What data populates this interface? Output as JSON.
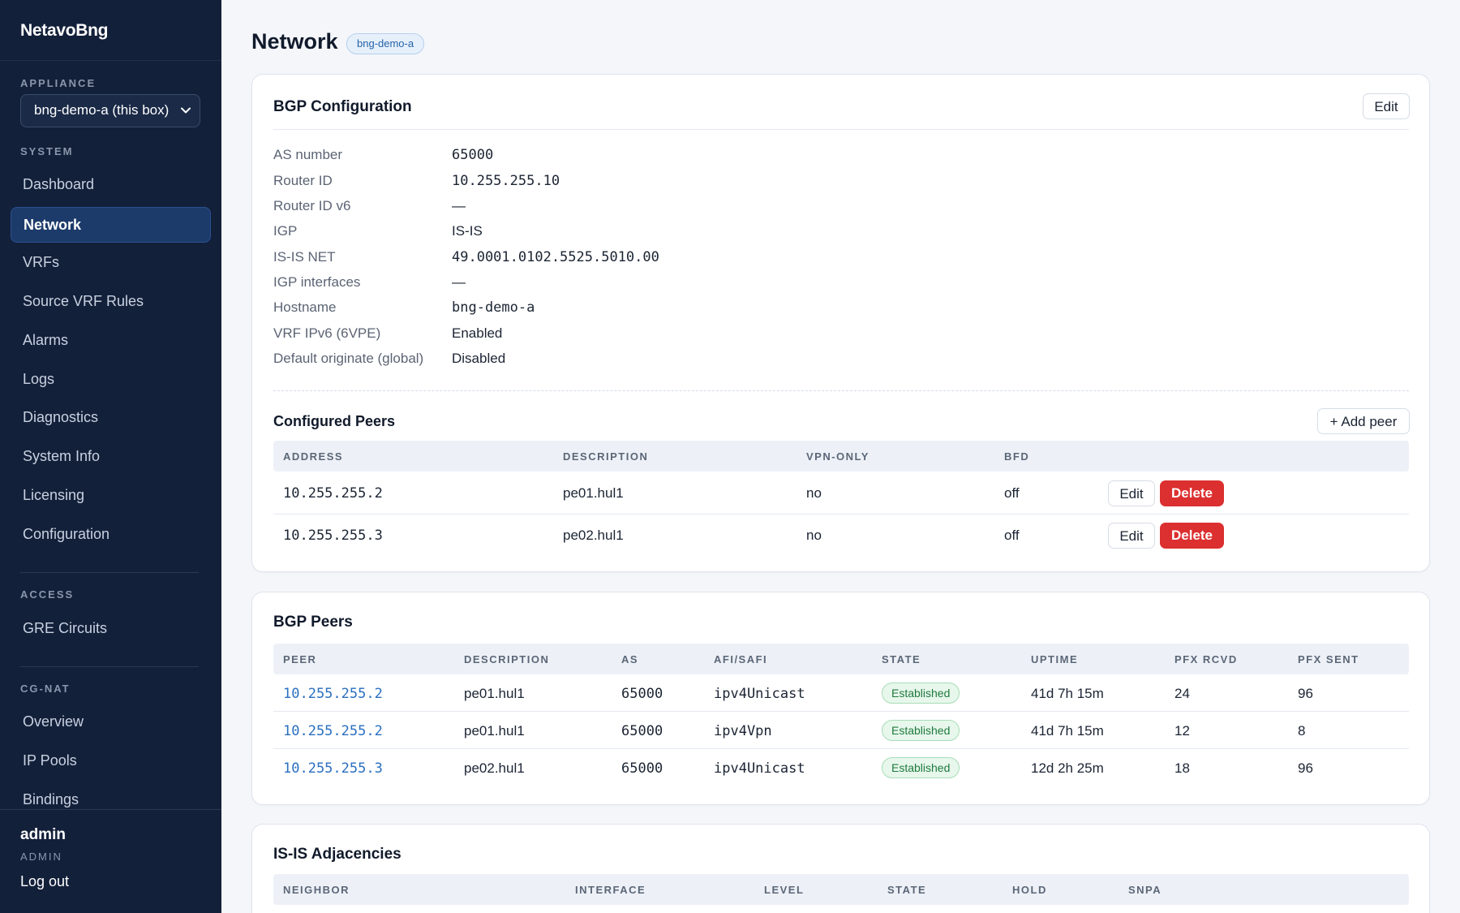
{
  "app": {
    "brand": "NetavoBng"
  },
  "sidebar": {
    "appliance_label": "APPLIANCE",
    "appliance_value": "bng-demo-a (this box)",
    "system_label": "SYSTEM",
    "system_items": [
      {
        "label": "Dashboard"
      },
      {
        "label": "Network",
        "active": true
      },
      {
        "label": "VRFs"
      },
      {
        "label": "Source VRF Rules"
      },
      {
        "label": "Alarms"
      },
      {
        "label": "Logs"
      },
      {
        "label": "Diagnostics"
      },
      {
        "label": "System Info"
      },
      {
        "label": "Licensing"
      },
      {
        "label": "Configuration"
      }
    ],
    "access_label": "ACCESS",
    "access_items": [
      {
        "label": "GRE Circuits"
      }
    ],
    "cgnat_label": "CG-NAT",
    "cgnat_items": [
      {
        "label": "Overview"
      },
      {
        "label": "IP Pools"
      },
      {
        "label": "Bindings"
      }
    ],
    "user": {
      "name": "admin",
      "role": "ADMIN",
      "logout": "Log out"
    }
  },
  "page": {
    "title": "Network",
    "host_badge": "bng-demo-a"
  },
  "bgp_config": {
    "title": "BGP Configuration",
    "edit_label": "Edit",
    "fields": [
      {
        "label": "AS number",
        "value": "65000",
        "mono": true
      },
      {
        "label": "Router ID",
        "value": "10.255.255.10",
        "mono": true
      },
      {
        "label": "Router ID v6",
        "value": "—",
        "mono": false
      },
      {
        "label": "IGP",
        "value": "IS-IS",
        "mono": false
      },
      {
        "label": "IS-IS NET",
        "value": "49.0001.0102.5525.5010.00",
        "mono": true
      },
      {
        "label": "IGP interfaces",
        "value": "—",
        "mono": false
      },
      {
        "label": "Hostname",
        "value": "bng-demo-a",
        "mono": true
      },
      {
        "label": "VRF IPv6 (6VPE)",
        "value": "Enabled",
        "mono": false
      },
      {
        "label": "Default originate (global)",
        "value": "Disabled",
        "mono": false
      }
    ],
    "peers_title": "Configured Peers",
    "add_peer_label": "+ Add peer",
    "peers_columns": [
      "ADDRESS",
      "DESCRIPTION",
      "VPN-ONLY",
      "BFD"
    ],
    "peers": [
      {
        "address": "10.255.255.2",
        "description": "pe01.hul1",
        "vpn_only": "no",
        "bfd": "off",
        "edit": "Edit",
        "delete": "Delete"
      },
      {
        "address": "10.255.255.3",
        "description": "pe02.hul1",
        "vpn_only": "no",
        "bfd": "off",
        "edit": "Edit",
        "delete": "Delete"
      }
    ]
  },
  "bgp_peers": {
    "title": "BGP Peers",
    "columns": [
      "PEER",
      "DESCRIPTION",
      "AS",
      "AFI/SAFI",
      "STATE",
      "UPTIME",
      "PFX RCVD",
      "PFX SENT"
    ],
    "rows": [
      {
        "peer": "10.255.255.2",
        "description": "pe01.hul1",
        "as": "65000",
        "afi_safi": "ipv4Unicast",
        "state": "Established",
        "uptime": "41d 7h 15m",
        "pfx_rcvd": "24",
        "pfx_sent": "96"
      },
      {
        "peer": "10.255.255.2",
        "description": "pe01.hul1",
        "as": "65000",
        "afi_safi": "ipv4Vpn",
        "state": "Established",
        "uptime": "41d 7h 15m",
        "pfx_rcvd": "12",
        "pfx_sent": "8"
      },
      {
        "peer": "10.255.255.3",
        "description": "pe02.hul1",
        "as": "65000",
        "afi_safi": "ipv4Unicast",
        "state": "Established",
        "uptime": "12d 2h 25m",
        "pfx_rcvd": "18",
        "pfx_sent": "96"
      }
    ]
  },
  "isis": {
    "title": "IS-IS Adjacencies",
    "columns": [
      "NEIGHBOR",
      "INTERFACE",
      "LEVEL",
      "STATE",
      "HOLD",
      "SNPA"
    ]
  },
  "colors": {
    "sidebar_bg": "#13203a",
    "active_nav": "#1c3b6a",
    "danger": "#dc2f2f",
    "link": "#2a6fc0",
    "established": "#1f7a3d"
  }
}
